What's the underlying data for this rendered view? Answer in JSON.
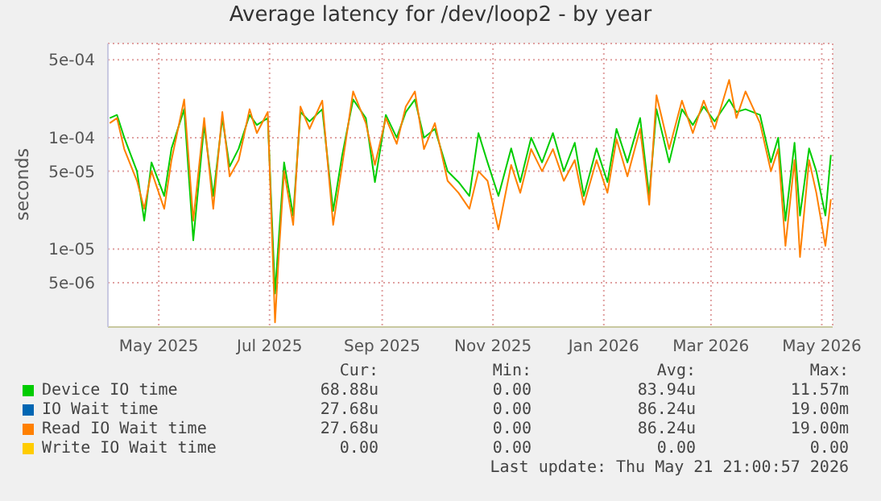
{
  "chart_data": {
    "type": "line",
    "title": "Average latency for /dev/loop2 - by year",
    "ylabel": "seconds",
    "log": true,
    "grid": true,
    "legend": "bottom",
    "xlim": [
      "2025-04-03",
      "2026-05-07"
    ],
    "xticks": [
      {
        "value": "2025-05-01",
        "label": "May 2025"
      },
      {
        "value": "2025-07-01",
        "label": "Jul 2025"
      },
      {
        "value": "2025-09-01",
        "label": "Sep 2025"
      },
      {
        "value": "2025-11-01",
        "label": "Nov 2025"
      },
      {
        "value": "2026-01-01",
        "label": "Jan 2026"
      },
      {
        "value": "2026-03-01",
        "label": "Mar 2026"
      },
      {
        "value": "2026-05-01",
        "label": "May 2026"
      }
    ],
    "ylim": [
      2e-06,
      0.0007
    ],
    "yticks": [
      {
        "value": 5e-06,
        "label": "5e-06"
      },
      {
        "value": 1e-05,
        "label": "1e-05"
      },
      {
        "value": 5e-05,
        "label": "5e-05"
      },
      {
        "value": 0.0001,
        "label": "1e-04"
      },
      {
        "value": 0.0005,
        "label": "5e-04"
      }
    ],
    "x": [
      "2025-04-04",
      "2025-04-08",
      "2025-04-12",
      "2025-04-19",
      "2025-04-23",
      "2025-04-27",
      "2025-05-04",
      "2025-05-08",
      "2025-05-15",
      "2025-05-20",
      "2025-05-26",
      "2025-05-31",
      "2025-06-05",
      "2025-06-09",
      "2025-06-14",
      "2025-06-20",
      "2025-06-24",
      "2025-06-30",
      "2025-07-04",
      "2025-07-06",
      "2025-07-09",
      "2025-07-14",
      "2025-07-18",
      "2025-07-23",
      "2025-07-30",
      "2025-08-05",
      "2025-08-10",
      "2025-08-16",
      "2025-08-23",
      "2025-08-28",
      "2025-09-03",
      "2025-09-09",
      "2025-09-14",
      "2025-09-19",
      "2025-09-24",
      "2025-09-30",
      "2025-10-07",
      "2025-10-13",
      "2025-10-19",
      "2025-10-24",
      "2025-10-29",
      "2025-11-04",
      "2025-11-11",
      "2025-11-16",
      "2025-11-22",
      "2025-11-28",
      "2025-12-04",
      "2025-12-10",
      "2025-12-16",
      "2025-12-21",
      "2025-12-28",
      "2026-01-03",
      "2026-01-08",
      "2026-01-14",
      "2026-01-21",
      "2026-01-26",
      "2026-01-30",
      "2026-02-06",
      "2026-02-13",
      "2026-02-19",
      "2026-02-25",
      "2026-03-03",
      "2026-03-11",
      "2026-03-15",
      "2026-03-20",
      "2026-03-28",
      "2026-04-03",
      "2026-04-07",
      "2026-04-11",
      "2026-04-16",
      "2026-04-19",
      "2026-04-24",
      "2026-04-28",
      "2026-05-03",
      "2026-05-06"
    ],
    "series": [
      {
        "name": "Device IO time",
        "color": "#00cc00",
        "values": [
          0.00015,
          0.00016,
          0.0001,
          5e-05,
          1.8e-05,
          6e-05,
          3e-05,
          8e-05,
          0.00018,
          1.2e-05,
          0.00013,
          3e-05,
          0.00015,
          5.5e-05,
          8e-05,
          0.00016,
          0.00013,
          0.00015,
          4e-06,
          1.2e-05,
          6e-05,
          2e-05,
          0.00017,
          0.00014,
          0.00018,
          2.2e-05,
          7e-05,
          0.00022,
          0.00015,
          4e-05,
          0.00016,
          0.0001,
          0.00017,
          0.00022,
          0.0001,
          0.00012,
          5e-05,
          4e-05,
          3e-05,
          0.00011,
          6e-05,
          3e-05,
          8e-05,
          4e-05,
          0.0001,
          6e-05,
          0.00011,
          5e-05,
          9e-05,
          3e-05,
          8e-05,
          4e-05,
          0.00012,
          6e-05,
          0.00015,
          3e-05,
          0.00018,
          6e-05,
          0.00018,
          0.00013,
          0.00019,
          0.00014,
          0.00022,
          0.00017,
          0.00018,
          0.00016,
          6e-05,
          0.0001,
          1.8e-05,
          9e-05,
          2e-05,
          8e-05,
          5e-05,
          2e-05,
          7e-05
        ]
      },
      {
        "name": "IO Wait time",
        "color": "#0066b3",
        "values": [
          null,
          null,
          null,
          null,
          null,
          null,
          null,
          null,
          null,
          null,
          null,
          null,
          null,
          null,
          null,
          null,
          null,
          null,
          null,
          null,
          null,
          null,
          null,
          null,
          null,
          null,
          null,
          null,
          null,
          null,
          null,
          null,
          null,
          null,
          null,
          null,
          null,
          null,
          null,
          null,
          null,
          null,
          null,
          null,
          null,
          null,
          null,
          null,
          null,
          null,
          null,
          null,
          null,
          null,
          null,
          null,
          null,
          null,
          null,
          null,
          null,
          null,
          null,
          null,
          null,
          null,
          null,
          null,
          null,
          null,
          null,
          null,
          null,
          null,
          null
        ]
      },
      {
        "name": "Read IO Wait time",
        "color": "#ff8000",
        "values": [
          0.000135,
          0.00015,
          7.9e-05,
          4.1e-05,
          2.3e-05,
          5e-05,
          2.3e-05,
          6.3e-05,
          0.00022,
          1.8e-05,
          0.00015,
          2.3e-05,
          0.00017,
          4.5e-05,
          6.3e-05,
          0.00018,
          0.00011,
          0.00017,
          2.2e-06,
          8.5e-06,
          5e-05,
          1.65e-05,
          0.00019,
          0.00012,
          0.000215,
          1.65e-05,
          5.7e-05,
          0.00026,
          0.000135,
          5.7e-05,
          0.00015,
          8.8e-05,
          0.00019,
          0.00026,
          7.9e-05,
          0.000135,
          4.1e-05,
          3.2e-05,
          2.3e-05,
          5e-05,
          4.1e-05,
          1.5e-05,
          5.7e-05,
          3.2e-05,
          7.9e-05,
          5e-05,
          7.9e-05,
          4.1e-05,
          6.3e-05,
          2.5e-05,
          6.3e-05,
          3.2e-05,
          9.7e-05,
          4.5e-05,
          0.00012,
          2.5e-05,
          0.00024,
          7.9e-05,
          0.000215,
          0.00011,
          0.000215,
          0.00012,
          0.00033,
          0.00015,
          0.00026,
          0.000135,
          5e-05,
          7.9e-05,
          1.07e-05,
          6.3e-05,
          8.5e-06,
          6.3e-05,
          3.2e-05,
          1.07e-05,
          2.8e-05
        ]
      },
      {
        "name": "Write IO Wait time",
        "color": "#ffcc00",
        "values": [
          null,
          null,
          null,
          null,
          null,
          null,
          null,
          null,
          null,
          null,
          null,
          null,
          null,
          null,
          null,
          null,
          null,
          null,
          null,
          null,
          null,
          null,
          null,
          null,
          null,
          null,
          null,
          null,
          null,
          null,
          null,
          null,
          null,
          null,
          null,
          null,
          null,
          null,
          null,
          null,
          null,
          null,
          null,
          null,
          null,
          null,
          null,
          null,
          null,
          null,
          null,
          null,
          null,
          null,
          null,
          null,
          null,
          null,
          null,
          null,
          null,
          null,
          null,
          null,
          null,
          null,
          null,
          null,
          null,
          null,
          null,
          null,
          null,
          null,
          null
        ]
      }
    ],
    "annotations": [
      "Cur:",
      "Min:",
      "Avg:",
      "Max:",
      "68.88u",
      "0.00",
      "83.94u",
      "11.57m",
      "27.68u",
      "0.00",
      "86.24u",
      "19.00m",
      "27.68u",
      "0.00",
      "86.24u",
      "19.00m",
      "0.00",
      "0.00",
      "0.00",
      "0.00",
      "Last update: Thu May 21 21:00:57 2026"
    ]
  }
}
